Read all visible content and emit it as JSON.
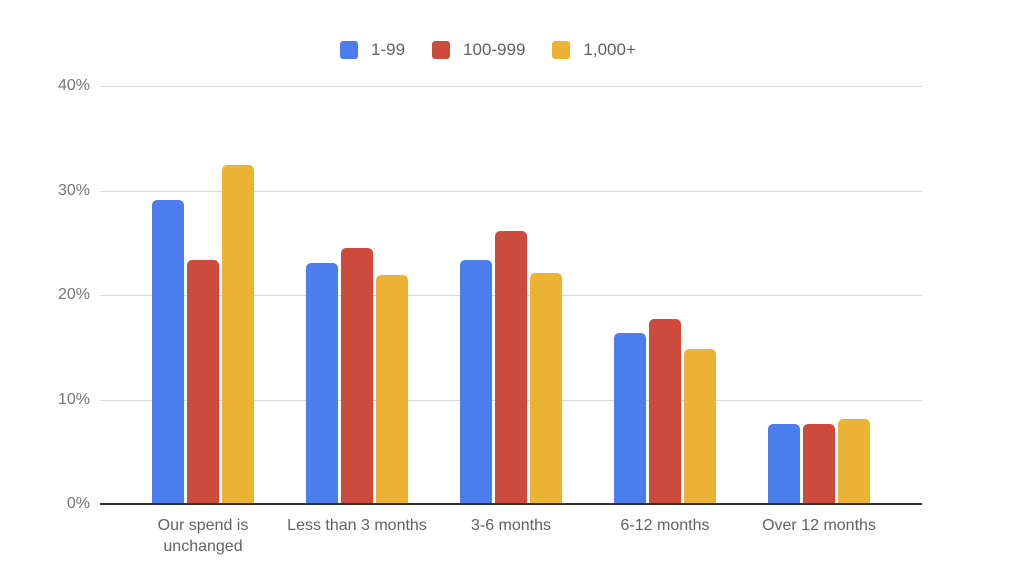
{
  "chart_data": {
    "type": "bar",
    "title": "",
    "categories": [
      "Our spend is unchanged",
      "Less than 3 months",
      "3-6 months",
      "6-12 months",
      "Over 12 months"
    ],
    "series": [
      {
        "name": "1-99",
        "color": "#4C7DEC",
        "values": [
          29.1,
          23.1,
          23.4,
          16.4,
          7.7
        ]
      },
      {
        "name": "100-999",
        "color": "#CC4B3D",
        "values": [
          23.4,
          24.5,
          26.1,
          17.7,
          7.7
        ]
      },
      {
        "name": "1,000+",
        "color": "#ECB233",
        "values": [
          32.4,
          21.9,
          22.1,
          14.8,
          8.1
        ]
      }
    ],
    "ylim": [
      0,
      40
    ],
    "yticks": [
      {
        "label": "40%",
        "value": 40
      },
      {
        "label": "30%",
        "value": 30
      },
      {
        "label": "20%",
        "value": 20
      },
      {
        "label": "10%",
        "value": 10
      },
      {
        "label": "0%",
        "value": 0
      }
    ],
    "grid": true,
    "legend_position": "top",
    "xlabel": "",
    "ylabel": ""
  },
  "colors": {
    "background": "#ffffff",
    "gridline": "#d9d9d9",
    "baseline": "#333333",
    "ytick_text": "#757575",
    "xtick_text": "#616161",
    "legend_text": "#616161"
  },
  "layout_note_values_are_percent": "bar heights = value / 40 of plot height"
}
